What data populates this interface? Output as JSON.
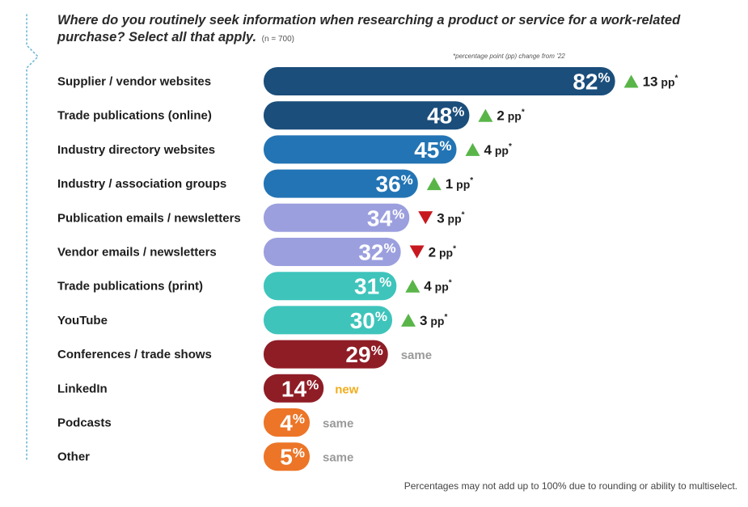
{
  "question": "Where do you routinely seek information when researching a product or service for a work-related purchase? Select all that apply.",
  "sample_size": "(n = 700)",
  "pp_note": "*percentage point (pp) change from ’22",
  "footnote": "Percentages may not add up to 100% due to rounding or ability to multiselect.",
  "colors": {
    "blue_dark": "#1b4e7b",
    "blue_mid": "#2374b4",
    "lavender": "#9b9fde",
    "teal": "#3ec4bb",
    "maroon": "#8f1d26",
    "orange": "#ec7527",
    "up": "#59b548",
    "down": "#c8181f",
    "dots": "#6cb8d6"
  },
  "chart_data": {
    "type": "bar",
    "orientation": "horizontal",
    "value_suffix": "%",
    "categories": [
      "Supplier / vendor websites",
      "Trade publications (online)",
      "Industry directory websites",
      "Industry / association groups",
      "Publication emails / newsletters",
      "Vendor emails / newsletters",
      "Trade publications (print)",
      "YouTube",
      "Conferences / trade shows",
      "LinkedIn",
      "Podcasts",
      "Other"
    ],
    "values": [
      82,
      48,
      45,
      36,
      34,
      32,
      31,
      30,
      29,
      14,
      4,
      5
    ],
    "value_labels": [
      "82%",
      "48%",
      "45%",
      "36%",
      "34%",
      "32%",
      "31%",
      "30%",
      "29%",
      "14%",
      "4%",
      "5%"
    ],
    "bar_colors": [
      "#1b4e7b",
      "#1b4e7b",
      "#2374b4",
      "#2374b4",
      "#9b9fde",
      "#9b9fde",
      "#3ec4bb",
      "#3ec4bb",
      "#8f1d26",
      "#8f1d26",
      "#ec7527",
      "#ec7527"
    ],
    "changes": [
      {
        "direction": "up",
        "text": "13 pp"
      },
      {
        "direction": "up",
        "text": "2 pp"
      },
      {
        "direction": "up",
        "text": "4 pp"
      },
      {
        "direction": "up",
        "text": "1 pp"
      },
      {
        "direction": "down",
        "text": "3 pp"
      },
      {
        "direction": "down",
        "text": "2 pp"
      },
      {
        "direction": "up",
        "text": "4 pp"
      },
      {
        "direction": "up",
        "text": "3 pp"
      },
      {
        "direction": "none",
        "text": "same"
      },
      {
        "direction": "new",
        "text": "new"
      },
      {
        "direction": "none",
        "text": "same"
      },
      {
        "direction": "none",
        "text": "same"
      }
    ],
    "change_marker": "*",
    "xlim": [
      0,
      100
    ]
  }
}
